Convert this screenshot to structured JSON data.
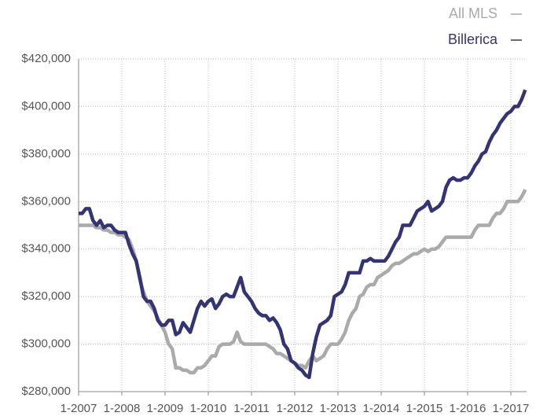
{
  "chart_data": {
    "type": "line",
    "categories": [
      "1-2007",
      null,
      null,
      null,
      null,
      null,
      null,
      null,
      null,
      null,
      null,
      null,
      "1-2008",
      null,
      null,
      null,
      null,
      null,
      null,
      null,
      null,
      null,
      null,
      null,
      "1-2009",
      null,
      null,
      null,
      null,
      null,
      null,
      null,
      null,
      null,
      null,
      null,
      "1-2010",
      null,
      null,
      null,
      null,
      null,
      null,
      null,
      null,
      null,
      null,
      null,
      "1-2011",
      null,
      null,
      null,
      null,
      null,
      null,
      null,
      null,
      null,
      null,
      null,
      "1-2012",
      null,
      null,
      null,
      null,
      null,
      null,
      null,
      null,
      null,
      null,
      null,
      "1-2013",
      null,
      null,
      null,
      null,
      null,
      null,
      null,
      null,
      null,
      null,
      null,
      "1-2014",
      null,
      null,
      null,
      null,
      null,
      null,
      null,
      null,
      null,
      null,
      null,
      "1-2015",
      null,
      null,
      null,
      null,
      null,
      null,
      null,
      null,
      null,
      null,
      null,
      "1-2016",
      null,
      null,
      null,
      null,
      null,
      null,
      null,
      null,
      null,
      null,
      null,
      "1-2017",
      null,
      null,
      null,
      null
    ],
    "series": [
      {
        "name": "All MLS",
        "color": "#aaaaaa",
        "values": [
          350000,
          350000,
          350000,
          350000,
          350000,
          349000,
          349000,
          348000,
          348000,
          347000,
          347000,
          346000,
          346000,
          345000,
          344000,
          340000,
          335000,
          327000,
          322000,
          318000,
          316000,
          314000,
          311000,
          308000,
          305000,
          300000,
          298000,
          290000,
          290000,
          289000,
          289000,
          288000,
          288000,
          290000,
          290000,
          291000,
          293000,
          295000,
          295000,
          299000,
          300000,
          300000,
          300000,
          301000,
          305000,
          301000,
          300000,
          300000,
          300000,
          300000,
          300000,
          300000,
          300000,
          299000,
          298000,
          296000,
          296000,
          295000,
          294000,
          293000,
          292000,
          291000,
          291000,
          290000,
          293000,
          295000,
          293000,
          294000,
          295000,
          298000,
          300000,
          300000,
          300000,
          302000,
          305000,
          310000,
          313000,
          315000,
          320000,
          321000,
          324000,
          325000,
          325000,
          328000,
          329000,
          330000,
          331000,
          333000,
          334000,
          334000,
          335000,
          336000,
          337000,
          338000,
          338000,
          339000,
          340000,
          339000,
          340000,
          340000,
          341000,
          343000,
          345000,
          345000,
          345000,
          345000,
          345000,
          345000,
          345000,
          345000,
          348000,
          350000,
          350000,
          350000,
          350000,
          353000,
          355000,
          355000,
          357000,
          360000,
          360000,
          360000,
          360000,
          362000,
          365000
        ]
      },
      {
        "name": "Billerica",
        "color": "#343474",
        "values": [
          355000,
          355000,
          357000,
          357000,
          352000,
          350000,
          352000,
          349000,
          350000,
          350000,
          348000,
          347000,
          347000,
          347000,
          342000,
          338000,
          335000,
          328000,
          320000,
          318000,
          318000,
          315000,
          310000,
          308000,
          308000,
          310000,
          310000,
          304000,
          305000,
          309000,
          307000,
          305000,
          310000,
          315000,
          318000,
          316000,
          318000,
          319000,
          315000,
          317000,
          320000,
          321000,
          320000,
          320000,
          324000,
          328000,
          322000,
          320000,
          318000,
          315000,
          313000,
          312000,
          312000,
          310000,
          311000,
          309000,
          306000,
          300000,
          298000,
          293000,
          292000,
          290000,
          289000,
          287000,
          286000,
          296000,
          303000,
          308000,
          309000,
          310000,
          312000,
          320000,
          321000,
          322000,
          325000,
          330000,
          330000,
          330000,
          330000,
          335000,
          335000,
          336000,
          335000,
          335000,
          335000,
          335000,
          337000,
          340000,
          343000,
          345000,
          350000,
          350000,
          350000,
          353000,
          356000,
          357000,
          358000,
          360000,
          356000,
          357000,
          358000,
          360000,
          366000,
          369000,
          370000,
          369000,
          369000,
          370000,
          370000,
          372000,
          375000,
          377000,
          380000,
          381000,
          385000,
          388000,
          390000,
          393000,
          395000,
          397000,
          398000,
          400000,
          400000,
          403000,
          407000
        ]
      }
    ],
    "ylim": [
      280000,
      420000
    ],
    "yticks": [
      {
        "value": 280000,
        "label": "$280,000"
      },
      {
        "value": 300000,
        "label": "$300,000"
      },
      {
        "value": 320000,
        "label": "$320,000"
      },
      {
        "value": 340000,
        "label": "$340,000"
      },
      {
        "value": 360000,
        "label": "$360,000"
      },
      {
        "value": 380000,
        "label": "$380,000"
      },
      {
        "value": 400000,
        "label": "$400,000"
      },
      {
        "value": 420000,
        "label": "$420,000"
      }
    ],
    "grid": true,
    "legend": "top-right"
  }
}
